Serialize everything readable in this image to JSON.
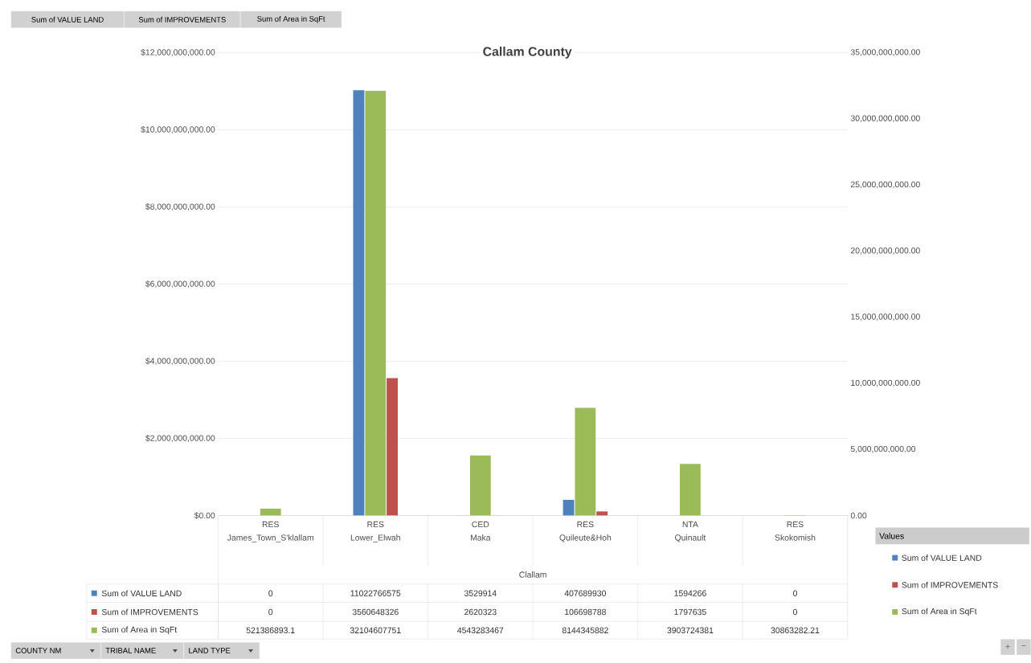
{
  "chart_data": {
    "type": "bar",
    "title": "Callam County",
    "categories": [
      "James_Town_S'klallam",
      "Lower_Elwah",
      "Maka",
      "Quileute&Hoh",
      "Quinault",
      "Skokomish"
    ],
    "series": [
      {
        "name": "Sum of VALUE LAND",
        "color": "#4f81bd",
        "values": [
          0,
          11022766575,
          3529914,
          407689930,
          1594266,
          0
        ]
      },
      {
        "name": "Sum of IMPROVEMENTS",
        "color": "#c0504d",
        "values": [
          0,
          3560648326,
          2620323,
          106698788,
          1797635,
          0
        ]
      },
      {
        "name": "Sum of Area in SqFt",
        "color": "#9bbb59",
        "axis": "y2",
        "values": [
          521386893.1,
          32104607751,
          4543283467,
          8144345882,
          3903724381,
          30863282.21
        ]
      }
    ],
    "ylim": [
      0,
      12000000000
    ],
    "yticks": [
      {
        "value": 0,
        "label": "$0.00"
      },
      {
        "value": 2000000000,
        "label": "$2,000,000,000.00"
      },
      {
        "value": 4000000000,
        "label": "$4,000,000,000.00"
      },
      {
        "value": 6000000000,
        "label": "$6,000,000,000.00"
      },
      {
        "value": 8000000000,
        "label": "$8,000,000,000.00"
      },
      {
        "value": 10000000000,
        "label": "$10,000,000,000.00"
      },
      {
        "value": 12000000000,
        "label": "$12,000,000,000.00"
      }
    ],
    "y2lim": [
      0,
      35000000000
    ],
    "y2ticks": [
      {
        "value": 0,
        "label": "0.00"
      },
      {
        "value": 5000000000,
        "label": "5,000,000,000.00"
      },
      {
        "value": 10000000000,
        "label": "10,000,000,000.00"
      },
      {
        "value": 15000000000,
        "label": "15,000,000,000.00"
      },
      {
        "value": 20000000000,
        "label": "20,000,000,000.00"
      },
      {
        "value": 25000000000,
        "label": "25,000,000,000.00"
      },
      {
        "value": 30000000000,
        "label": "30,000,000,000.00"
      },
      {
        "value": 35000000000,
        "label": "35,000,000,000.00"
      }
    ],
    "grid": "y",
    "legend": "right",
    "legend_title": "Values",
    "data_labels": true,
    "annotations": [
      "Sum of VALUE LAND",
      "Sum of IMPROVEMENTS",
      "Sum of Area in SqFt",
      "RES",
      "RES",
      "CED",
      "RES",
      "NTA",
      "RES",
      "Clallam",
      "COUNTY NM",
      "TRIBAL NAME",
      "LAND TYPE",
      "+",
      "−"
    ]
  }
}
